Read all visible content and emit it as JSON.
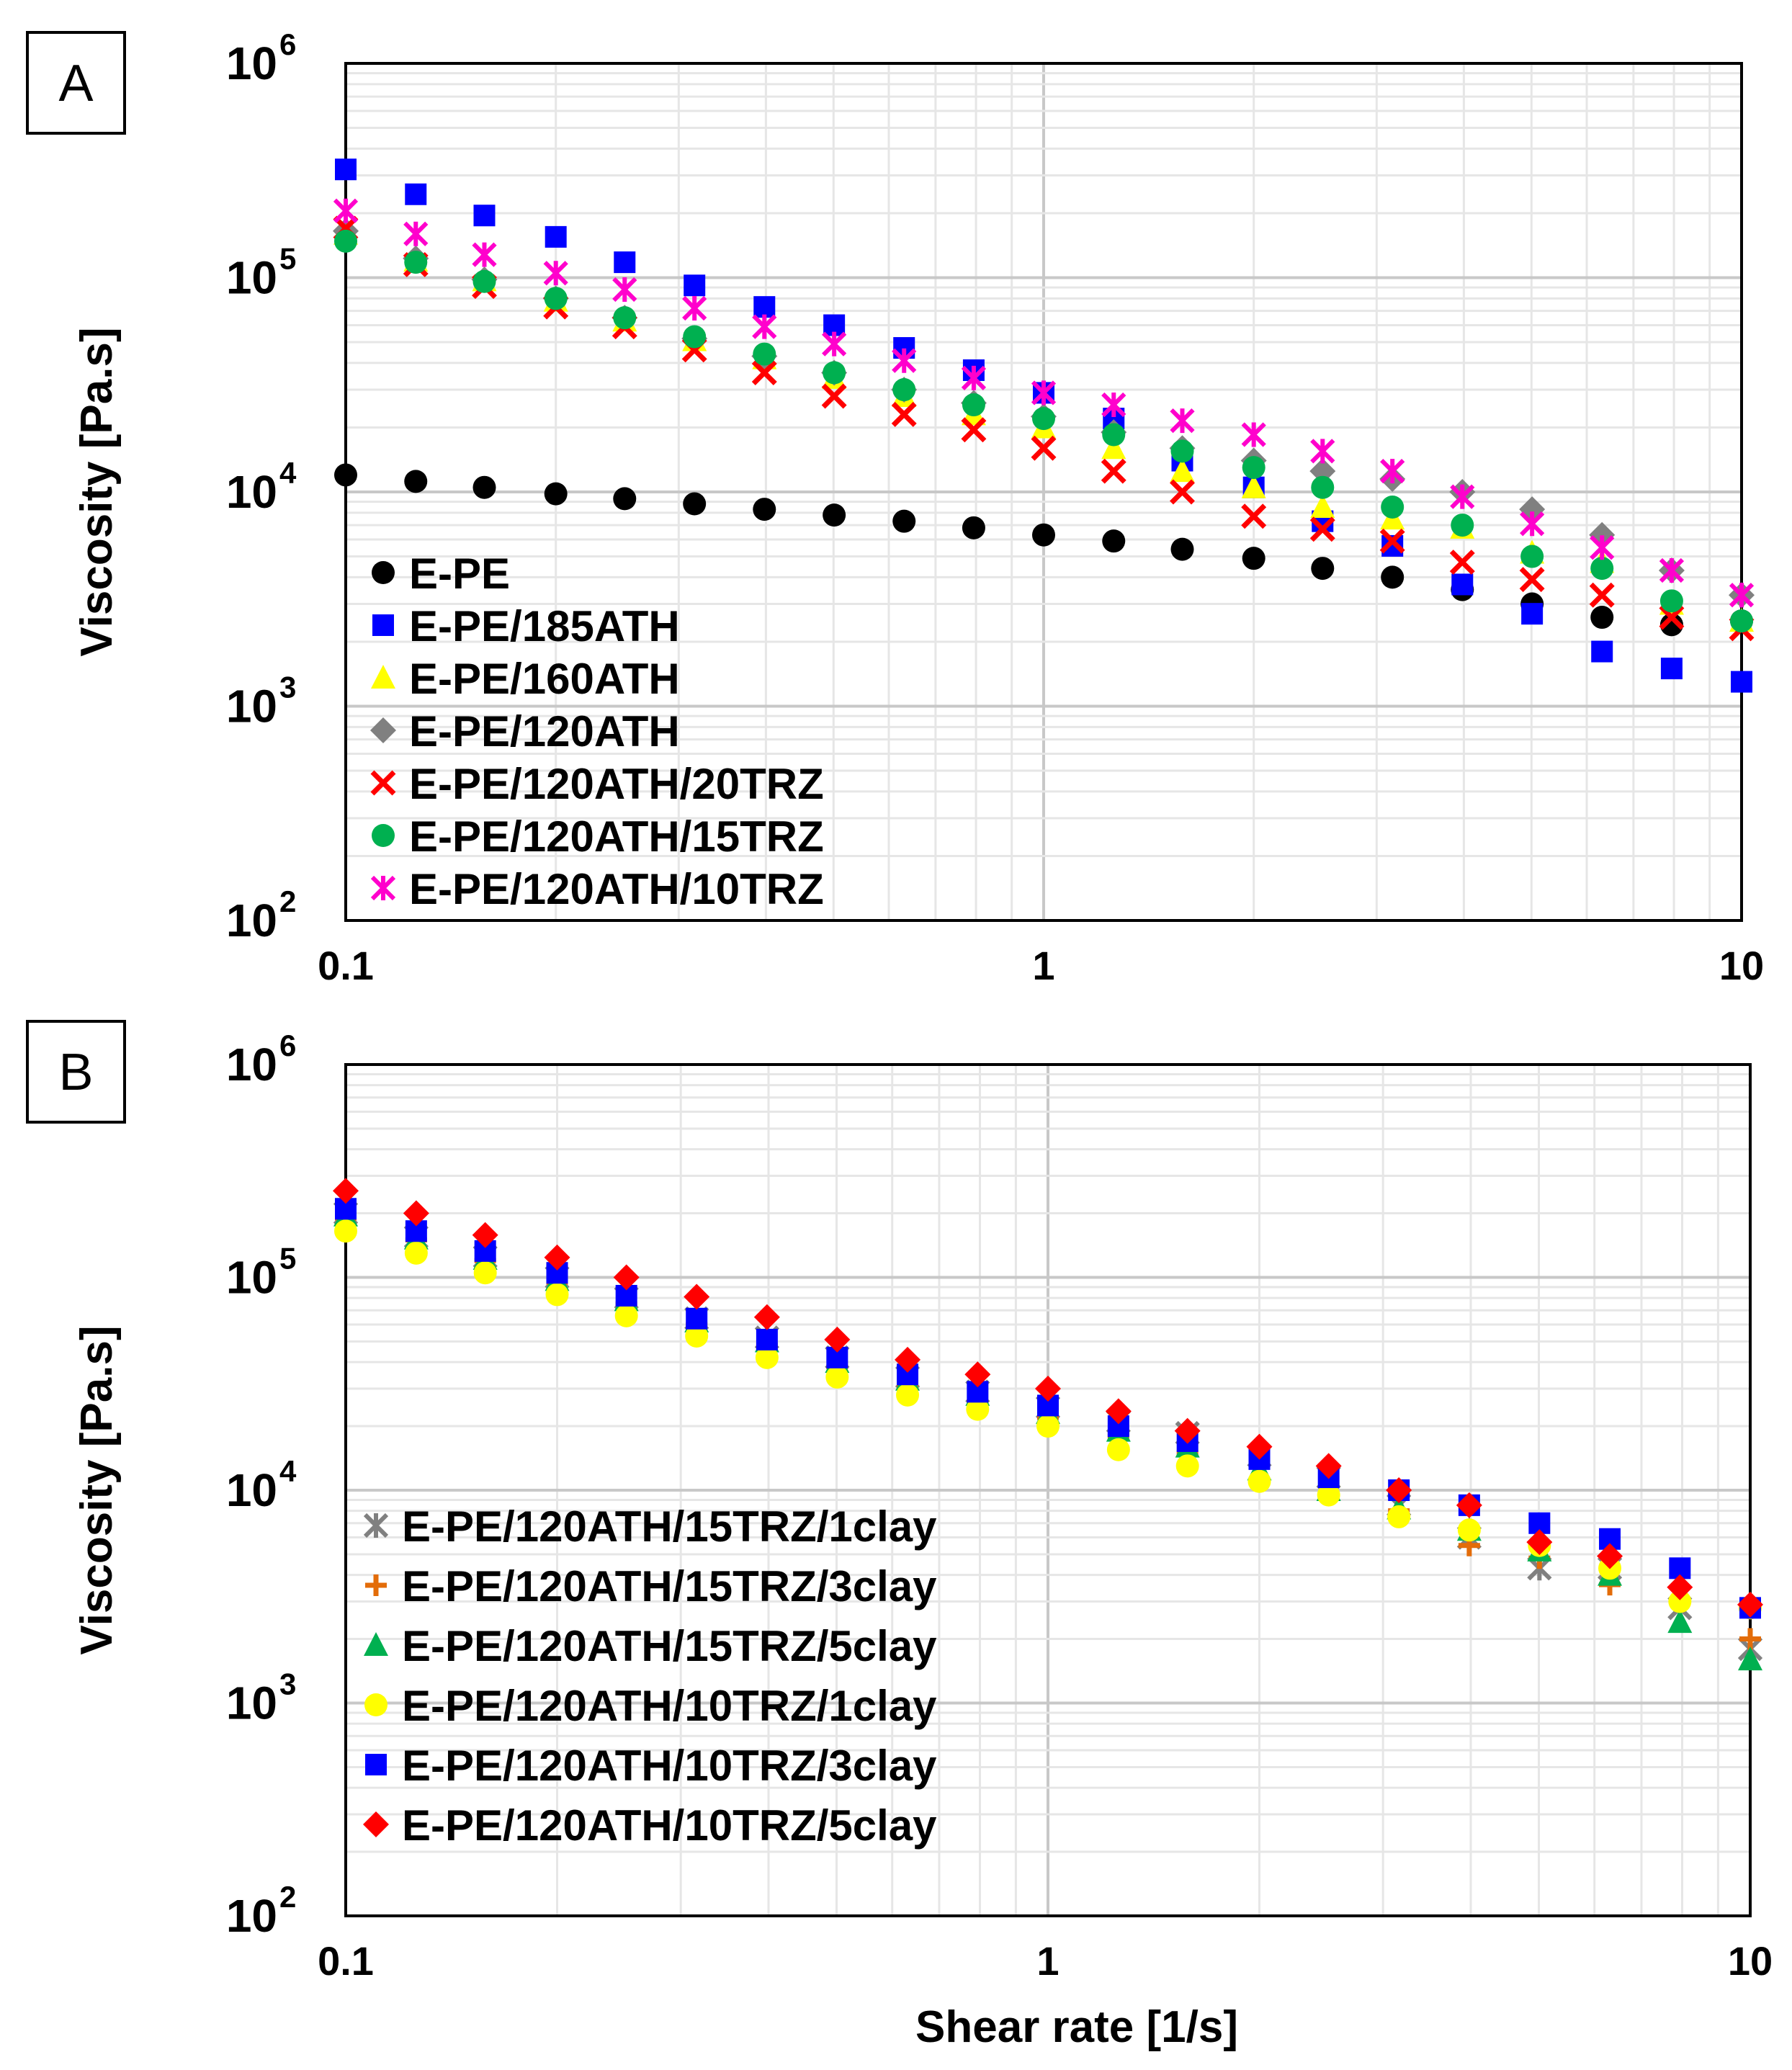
{
  "chart_data": [
    {
      "type": "scatter",
      "panel_label": "A",
      "xscale": "log",
      "yscale": "log",
      "xlim": [
        0.1,
        10
      ],
      "ylim": [
        100,
        1000000
      ],
      "xticks": [
        "0.1",
        "1",
        "10"
      ],
      "yticks": [
        {
          "base": "10",
          "exp": "2"
        },
        {
          "base": "10",
          "exp": "3"
        },
        {
          "base": "10",
          "exp": "4"
        },
        {
          "base": "10",
          "exp": "5"
        },
        {
          "base": "10",
          "exp": "6"
        }
      ],
      "ylabel": "Viscosity [Pa.s]",
      "xlabel": "",
      "grid": true,
      "legend_position": "bottom-left",
      "x": [
        0.1,
        0.126,
        0.158,
        0.2,
        0.251,
        0.316,
        0.398,
        0.501,
        0.631,
        0.794,
        1.0,
        1.26,
        1.58,
        2.0,
        2.51,
        3.16,
        3.98,
        5.01,
        6.31,
        7.94,
        10.0
      ],
      "series": [
        {
          "name": "E-PE",
          "marker": "circle",
          "color": "#000000",
          "values": [
            12000,
            11200,
            10500,
            9800,
            9300,
            8800,
            8300,
            7800,
            7300,
            6800,
            6300,
            5900,
            5400,
            4900,
            4400,
            4000,
            3500,
            3000,
            2600,
            2400,
            2500
          ]
        },
        {
          "name": "E-PE/185ATH",
          "marker": "square",
          "color": "#0000ff",
          "values": [
            320000,
            245000,
            195000,
            155000,
            118000,
            92000,
            73000,
            60000,
            47000,
            37000,
            29000,
            22000,
            14000,
            10500,
            7300,
            5600,
            3700,
            2700,
            1800,
            1500,
            1300
          ]
        },
        {
          "name": "E-PE/160ATH",
          "marker": "triangle",
          "color": "#ffff00",
          "values": [
            160000,
            120000,
            97000,
            78000,
            63000,
            51000,
            42000,
            34000,
            28000,
            23000,
            20000,
            16000,
            12500,
            10500,
            8500,
            7500,
            6800,
            5200,
            4700,
            3000,
            2500
          ]
        },
        {
          "name": "E-PE/120ATH",
          "marker": "diamond",
          "color": "#808080",
          "values": [
            165000,
            123000,
            98000,
            80000,
            65000,
            52000,
            43000,
            36000,
            30000,
            26000,
            22500,
            19000,
            16000,
            14000,
            12500,
            11500,
            10000,
            8300,
            6300,
            4300,
            3300
          ]
        },
        {
          "name": "E-PE/120ATH/20TRZ",
          "marker": "x",
          "color": "#ff0000",
          "values": [
            170000,
            115000,
            91000,
            73000,
            59000,
            46000,
            36000,
            28000,
            23000,
            19500,
            16000,
            12500,
            10000,
            7700,
            6700,
            5900,
            4700,
            3900,
            3300,
            2600,
            2300
          ]
        },
        {
          "name": "E-PE/120ATH/15TRZ",
          "marker": "circle",
          "color": "#00b050",
          "values": [
            148000,
            118000,
            96000,
            80000,
            65000,
            53000,
            44000,
            36000,
            30000,
            25500,
            22000,
            18500,
            15500,
            13000,
            10500,
            8500,
            7000,
            5000,
            4400,
            3100,
            2500
          ]
        },
        {
          "name": "E-PE/120ATH/10TRZ",
          "marker": "star",
          "color": "#ff00cc",
          "values": [
            205000,
            160000,
            128000,
            105000,
            88000,
            72000,
            59000,
            49000,
            41000,
            34000,
            29000,
            25500,
            21500,
            18500,
            15500,
            12500,
            9500,
            7100,
            5500,
            4300,
            3300
          ]
        }
      ]
    },
    {
      "type": "scatter",
      "panel_label": "B",
      "xscale": "log",
      "yscale": "log",
      "xlim": [
        0.1,
        10
      ],
      "ylim": [
        100,
        1000000
      ],
      "xticks": [
        "0.1",
        "1",
        "10"
      ],
      "yticks": [
        {
          "base": "10",
          "exp": "2"
        },
        {
          "base": "10",
          "exp": "3"
        },
        {
          "base": "10",
          "exp": "4"
        },
        {
          "base": "10",
          "exp": "5"
        },
        {
          "base": "10",
          "exp": "6"
        }
      ],
      "ylabel": "Viscosity [Pa.s]",
      "xlabel": "Shear rate [1/s]",
      "grid": true,
      "legend_position": "bottom-left",
      "x": [
        0.1,
        0.126,
        0.158,
        0.2,
        0.251,
        0.316,
        0.398,
        0.501,
        0.631,
        0.794,
        1.0,
        1.26,
        1.58,
        2.0,
        2.51,
        3.16,
        3.98,
        5.01,
        6.31,
        7.94,
        10.0
      ],
      "series": [
        {
          "name": "E-PE/120ATH/15TRZ/1clay",
          "marker": "star",
          "color": "#808080",
          "values": [
            200000,
            155000,
            125000,
            100000,
            80000,
            64000,
            52000,
            42000,
            34000,
            29000,
            24500,
            21000,
            18500,
            14500,
            11500,
            8500,
            6000,
            4300,
            4300,
            2800,
            1800
          ]
        },
        {
          "name": "E-PE/120ATH/15TRZ/3clay",
          "marker": "plus",
          "color": "#e36c09",
          "values": [
            190000,
            150000,
            120000,
            95000,
            75000,
            60000,
            48000,
            38000,
            31000,
            26000,
            22000,
            18000,
            15000,
            11000,
            9500,
            8000,
            5500,
            4800,
            3600,
            3000,
            2000
          ]
        },
        {
          "name": "E-PE/120ATH/15TRZ/5clay",
          "marker": "triangle",
          "color": "#00b050",
          "values": [
            195000,
            152000,
            122000,
            97000,
            78000,
            62000,
            50000,
            40000,
            33000,
            28000,
            23000,
            19000,
            16000,
            12500,
            10000,
            8200,
            6500,
            5200,
            4000,
            2400,
            1600
          ]
        },
        {
          "name": "E-PE/120ATH/10TRZ/1clay",
          "marker": "circle",
          "color": "#ffff00",
          "values": [
            165000,
            130000,
            105000,
            83000,
            66000,
            53000,
            42000,
            34000,
            28000,
            24000,
            20000,
            15500,
            13000,
            11000,
            9500,
            7500,
            6500,
            5500,
            4300,
            3000,
            2800
          ]
        },
        {
          "name": "E-PE/120ATH/10TRZ/3clay",
          "marker": "square",
          "color": "#0000ff",
          "values": [
            210000,
            165000,
            133000,
            105000,
            82000,
            64000,
            51000,
            42000,
            35000,
            29000,
            25000,
            20000,
            17000,
            14000,
            11500,
            10000,
            8500,
            7000,
            5900,
            4300,
            2800
          ]
        },
        {
          "name": "E-PE/120ATH/10TRZ/5clay",
          "marker": "diamond",
          "color": "#ff0000",
          "values": [
            255000,
            200000,
            158000,
            124000,
            100000,
            81000,
            65000,
            51000,
            41000,
            35000,
            30000,
            23500,
            19000,
            16000,
            13000,
            10000,
            8500,
            5700,
            4900,
            3500,
            2900
          ]
        }
      ]
    }
  ]
}
